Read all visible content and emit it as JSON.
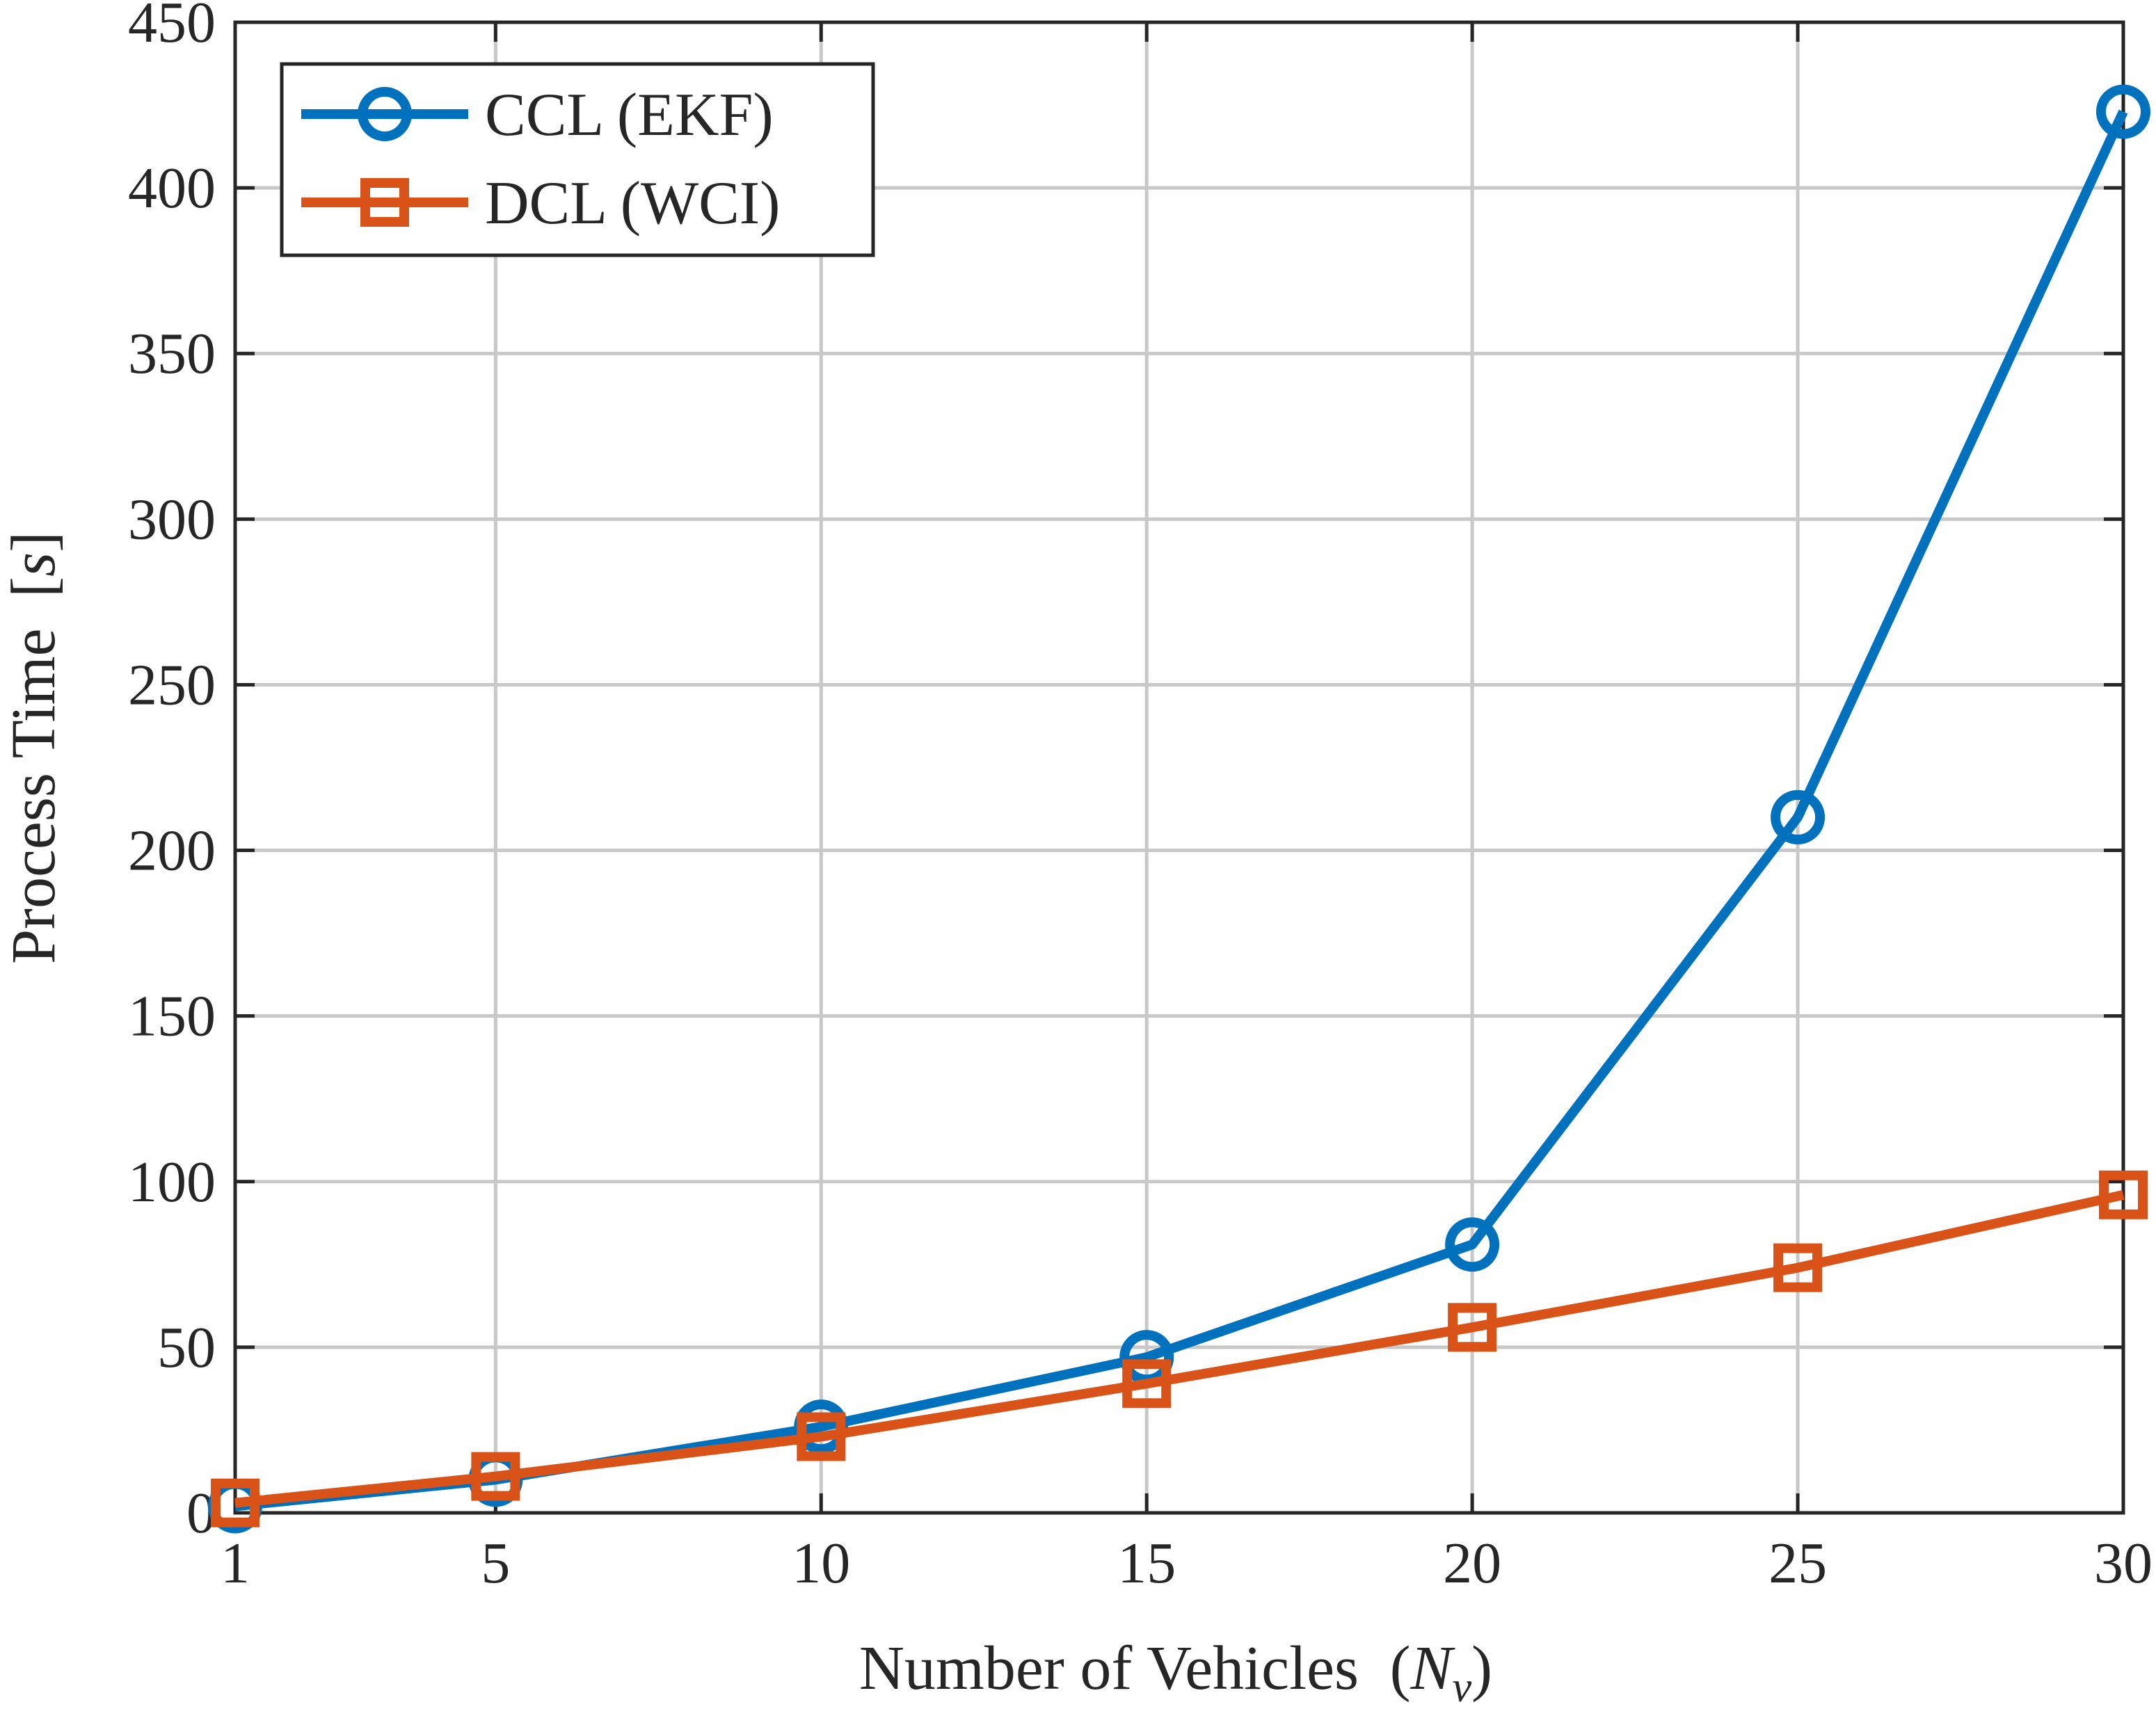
{
  "chart_data": {
    "type": "line",
    "title": "",
    "xlabel": "Number of Vehicles",
    "xlabel_math_open": "(",
    "xlabel_math_var": "N",
    "xlabel_math_sub": "v",
    "xlabel_math_close": ")",
    "ylabel": "Process Time",
    "ylabel_unit_open": "[",
    "ylabel_unit_var": "s",
    "ylabel_unit_close": "]",
    "x": [
      1,
      5,
      10,
      15,
      20,
      25,
      30
    ],
    "xticks": [
      "1",
      "5",
      "10",
      "15",
      "20",
      "25",
      "30"
    ],
    "yticks": [
      "0",
      "50",
      "100",
      "150",
      "200",
      "250",
      "300",
      "350",
      "400",
      "450"
    ],
    "ytick_values": [
      0,
      50,
      100,
      150,
      200,
      250,
      300,
      350,
      400,
      450
    ],
    "xlim": [
      1,
      30
    ],
    "ylim": [
      0,
      450
    ],
    "grid": true,
    "legend_position": "top-left",
    "series": [
      {
        "name": "CCL (EKF)",
        "color": "#0072BD",
        "marker": "circle",
        "values": [
          2,
          10,
          26,
          47,
          81,
          210,
          423
        ]
      },
      {
        "name": "DCL (WCI)",
        "color": "#D95319",
        "marker": "square",
        "values": [
          3,
          11,
          23,
          39,
          56,
          74,
          96
        ]
      }
    ]
  }
}
